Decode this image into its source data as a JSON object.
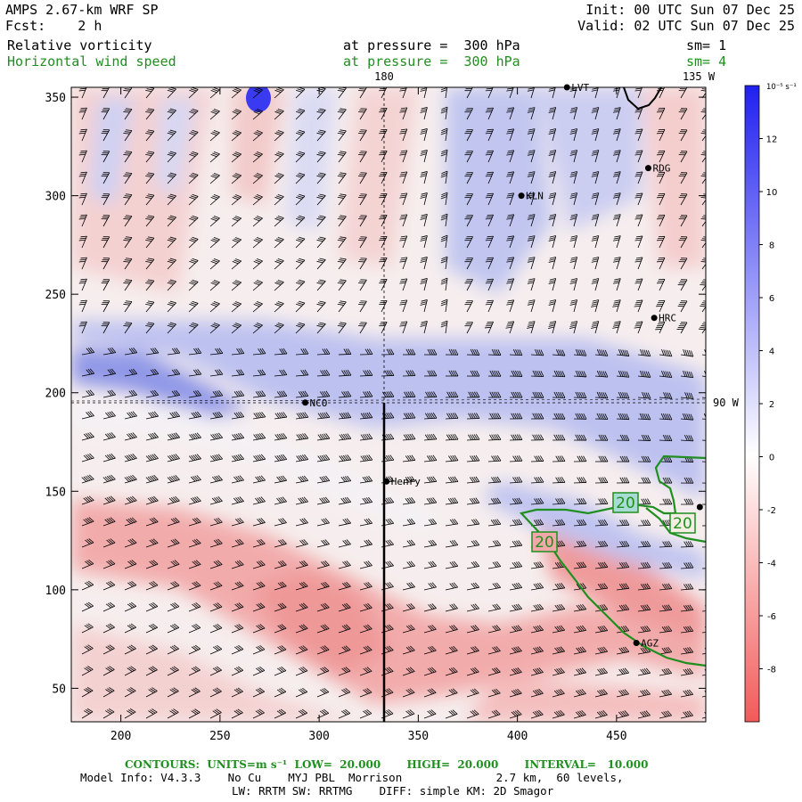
{
  "header": {
    "model": "AMPS 2.67-km WRF SP",
    "init": "Init: 00 UTC Sun 07 Dec 25",
    "fcst": "Fcst:    2 h",
    "valid": "Valid: 02 UTC Sun 07 Dec 25",
    "field1": {
      "name": "Relative vorticity",
      "pressure": "at pressure =  300 hPa",
      "sm": "sm= 1"
    },
    "field2": {
      "name": "Horizontal wind speed",
      "pressure": "at pressure =  300 hPa",
      "sm": "sm= 4"
    }
  },
  "map": {
    "x_axis": {
      "range": [
        175,
        495
      ],
      "ticks": [
        "200",
        "250",
        "300",
        "350",
        "400",
        "450"
      ]
    },
    "y_axis": {
      "range": [
        33,
        355
      ],
      "ticks": [
        "50",
        "100",
        "150",
        "200",
        "250",
        "300",
        "350"
      ]
    },
    "meridian_labels": {
      "m180": "180",
      "m135w": "135 W",
      "m90w": "90 W"
    },
    "stations": [
      {
        "name": "LVT",
        "x": 425,
        "y": 355
      },
      {
        "name": "RDG",
        "x": 466,
        "y": 314
      },
      {
        "name": "KLN",
        "x": 402,
        "y": 300
      },
      {
        "name": "HRC",
        "x": 469,
        "y": 238
      },
      {
        "name": "NCO",
        "x": 293,
        "y": 195
      },
      {
        "name": "Henry",
        "x": 334,
        "y": 155
      },
      {
        "name": "AGZ",
        "x": 460,
        "y": 73
      },
      {
        "name": "",
        "x": 492,
        "y": 142
      }
    ],
    "contour_labels": [
      "20",
      "20",
      "20"
    ],
    "colors": {
      "positive": "#3a3af2",
      "negative": "#f25a5a",
      "contour": "#1f8f1f"
    }
  },
  "colorbar": {
    "unit": "10⁻⁵ s⁻¹",
    "range": [
      -10,
      14
    ],
    "ticks": [
      "12",
      "10",
      "8",
      "6",
      "4",
      "2",
      "0",
      "-2",
      "-4",
      "-6",
      "-8"
    ]
  },
  "footer": {
    "contours": "CONTOURS:  UNITS=m s⁻¹  LOW=  20.000       HIGH=  20.000       INTERVAL=   10.000",
    "model_info": "Model Info: V4.3.3    No Cu    MYJ PBL  Morrison              2.7 km,  60 levels,",
    "physics": "LW: RRTM SW: RRTMG    DIFF: simple KM: 2D Smagor"
  }
}
